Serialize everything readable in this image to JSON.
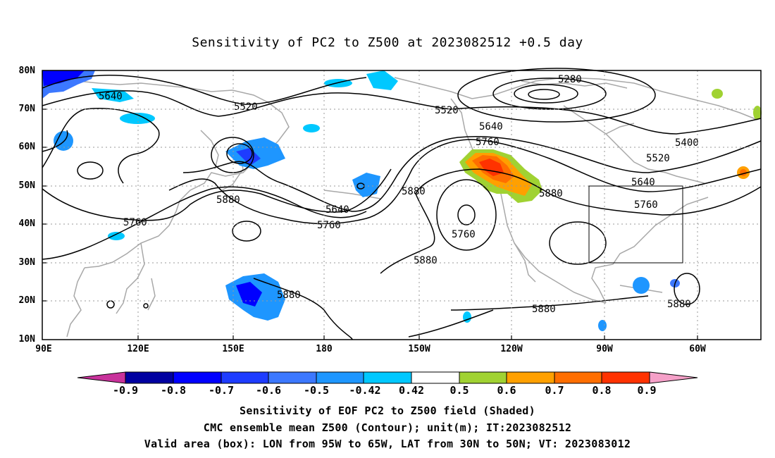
{
  "title": "Sensitivity of PC2 to Z500 at 2023082512 +0.5 day",
  "axes": {
    "lat_ticks": [
      "80N",
      "70N",
      "60N",
      "50N",
      "40N",
      "30N",
      "20N",
      "10N"
    ],
    "lon_ticks": [
      "90E",
      "120E",
      "150E",
      "180",
      "150W",
      "120W",
      "90W",
      "60W"
    ]
  },
  "contour_labels": [
    "5280",
    "5520",
    "5520",
    "5520",
    "5640",
    "5640",
    "5640",
    "5640",
    "5760",
    "5760",
    "5760",
    "5760",
    "5760",
    "5880",
    "5880",
    "5880",
    "5880",
    "5880",
    "5880",
    "5880",
    "5400"
  ],
  "valid_box": {
    "lon": [
      "95W",
      "65W"
    ],
    "lat": [
      "30N",
      "50N"
    ]
  },
  "colorbar": {
    "labels": [
      "-0.9",
      "-0.8",
      "-0.7",
      "-0.6",
      "-0.5",
      "-0.42",
      "0.42",
      "0.5",
      "0.6",
      "0.7",
      "0.8",
      "0.9"
    ],
    "colors": [
      "#0000a0",
      "#0000ff",
      "#1e3cff",
      "#3c78ff",
      "#1e96ff",
      "#00c8ff",
      "#ffffff",
      "#a0d232",
      "#ffa000",
      "#ff6e00",
      "#ff3200",
      "#ff0000"
    ],
    "low_end_color": "#c8329b",
    "high_end_color": "#f5a0c8"
  },
  "captions": {
    "line1": "Sensitivity of EOF PC2 to Z500 field (Shaded)",
    "line2": "CMC ensemble mean Z500 (Contour); unit(m); IT:2023082512",
    "line3": "Valid area (box): LON from 95W to 65W, LAT from 30N to 50N; VT: 2023083012"
  }
}
